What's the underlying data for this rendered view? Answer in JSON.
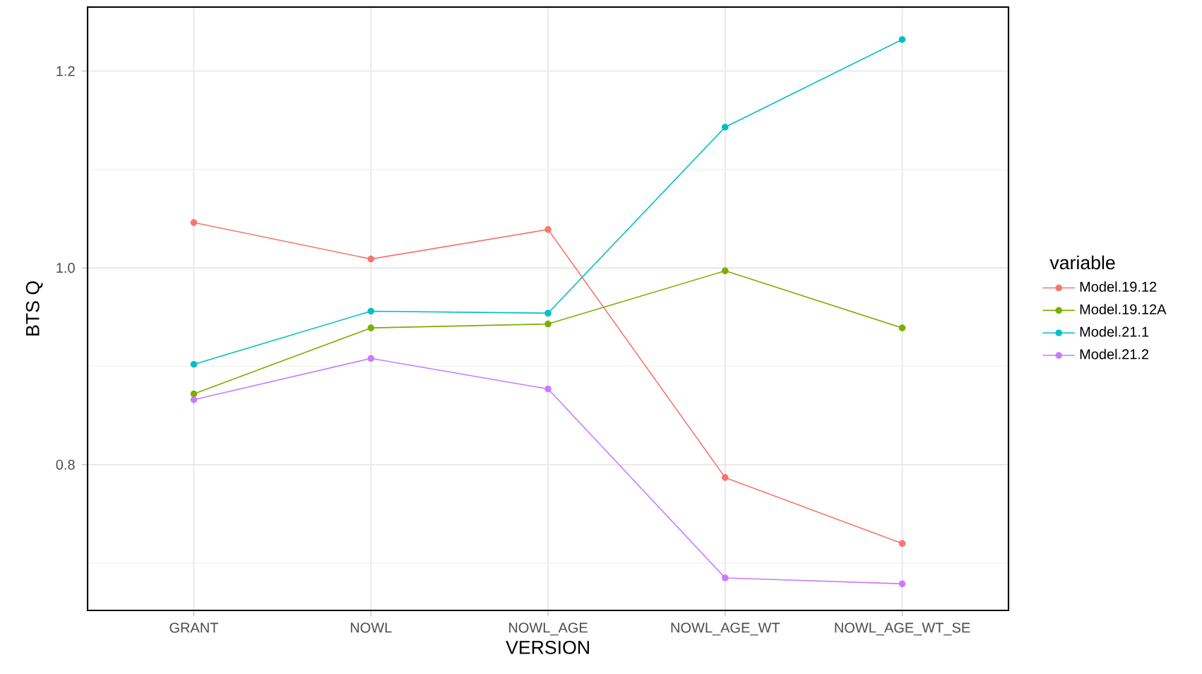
{
  "chart_data": {
    "type": "line",
    "xlabel": "VERSION",
    "ylabel": "BTS Q",
    "legend_title": "variable",
    "categories": [
      "GRANT",
      "NOWL",
      "NOWL_AGE",
      "NOWL_AGE_WT",
      "NOWL_AGE_WT_SE"
    ],
    "series": [
      {
        "name": "Model.19.12",
        "color": "#F8766D",
        "values": [
          1.046,
          1.009,
          1.039,
          0.787,
          0.72
        ]
      },
      {
        "name": "Model.19.12A",
        "color": "#7CAE00",
        "values": [
          0.872,
          0.939,
          0.943,
          0.997,
          0.939
        ]
      },
      {
        "name": "Model.21.1",
        "color": "#00BFC4",
        "values": [
          0.902,
          0.956,
          0.954,
          1.143,
          1.232
        ]
      },
      {
        "name": "Model.21.2",
        "color": "#C77CFF",
        "values": [
          0.866,
          0.908,
          0.877,
          0.685,
          0.679
        ]
      }
    ],
    "ylim": [
      0.652,
      1.265
    ],
    "yticks": [
      {
        "value": 0.7,
        "label": null
      },
      0.8,
      {
        "value": 0.9,
        "label": null
      },
      {
        "value": 1.0,
        "label": "1.0"
      },
      {
        "value": 1.1,
        "label": null
      },
      1.2
    ],
    "grid": true,
    "legend": "right",
    "marker": "circle",
    "line_style": "solid"
  }
}
